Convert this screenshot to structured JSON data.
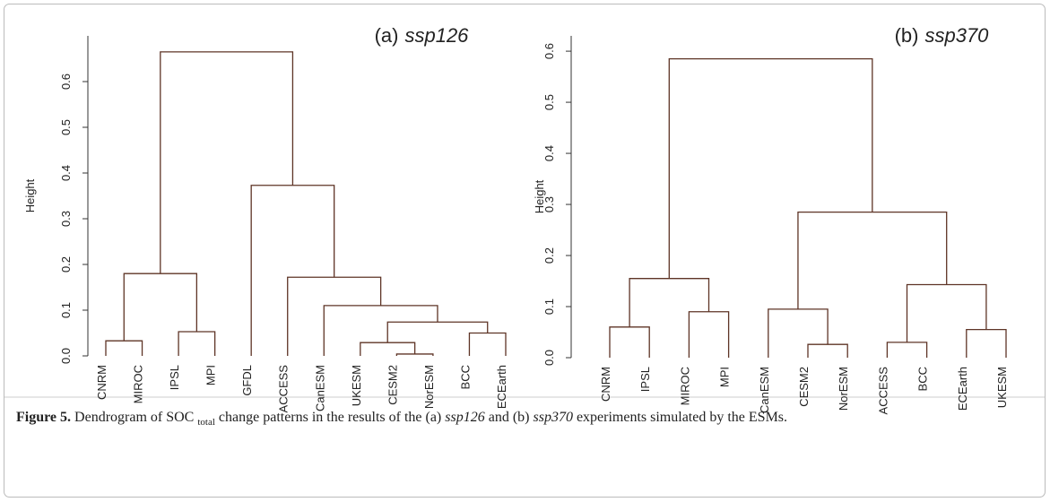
{
  "chart_data": [
    {
      "type": "dendrogram",
      "panel_label": "(a)",
      "scenario": "ssp126",
      "ylabel": "Height",
      "color": "#5e3426",
      "ylim": [
        0,
        0.7
      ],
      "yticks": [
        {
          "value": 0,
          "label": "0.0"
        },
        0.1,
        0.2,
        0.3,
        0.4,
        0.5,
        0.6
      ],
      "tree": {
        "height": 0.665,
        "children": [
          {
            "height": 0.18,
            "children": [
              {
                "height": 0.033,
                "children": [
                  {
                    "label": "CNRM"
                  },
                  {
                    "label": "MIROC"
                  }
                ]
              },
              {
                "height": 0.053,
                "children": [
                  {
                    "label": "IPSL"
                  },
                  {
                    "label": "MPI"
                  }
                ]
              }
            ]
          },
          {
            "height": 0.373,
            "children": [
              {
                "label": "GFDL"
              },
              {
                "height": 0.172,
                "children": [
                  {
                    "label": "ACCESS"
                  },
                  {
                    "height": 0.11,
                    "children": [
                      {
                        "label": "CanESM"
                      },
                      {
                        "height": 0.074,
                        "children": [
                          {
                            "height": 0.029,
                            "children": [
                              {
                                "label": "UKESM"
                              },
                              {
                                "height": 0.004,
                                "children": [
                                  {
                                    "label": "CESM2"
                                  },
                                  {
                                    "label": "NorESM"
                                  }
                                ]
                              }
                            ]
                          },
                          {
                            "height": 0.05,
                            "children": [
                              {
                                "label": "BCC"
                              },
                              {
                                "label": "ECEarth"
                              }
                            ]
                          }
                        ]
                      }
                    ]
                  }
                ]
              }
            ]
          }
        ]
      }
    },
    {
      "type": "dendrogram",
      "panel_label": "(b)",
      "scenario": "ssp370",
      "ylabel": "Height",
      "color": "#5e3426",
      "ylim": [
        0,
        0.63
      ],
      "yticks": [
        {
          "value": 0,
          "label": "0.0"
        },
        0.1,
        0.2,
        0.3,
        0.4,
        0.5,
        0.6
      ],
      "tree": {
        "height": 0.585,
        "children": [
          {
            "height": 0.155,
            "children": [
              {
                "height": 0.06,
                "children": [
                  {
                    "label": "CNRM"
                  },
                  {
                    "label": "IPSL"
                  }
                ]
              },
              {
                "height": 0.09,
                "children": [
                  {
                    "label": "MIROC"
                  },
                  {
                    "label": "MPI"
                  }
                ]
              }
            ]
          },
          {
            "height": 0.285,
            "children": [
              {
                "height": 0.095,
                "children": [
                  {
                    "label": "CanESM"
                  },
                  {
                    "height": 0.026,
                    "children": [
                      {
                        "label": "CESM2"
                      },
                      {
                        "label": "NorESM"
                      }
                    ]
                  }
                ]
              },
              {
                "height": 0.143,
                "children": [
                  {
                    "height": 0.03,
                    "children": [
                      {
                        "label": "ACCESS"
                      },
                      {
                        "label": "BCC"
                      }
                    ]
                  },
                  {
                    "height": 0.055,
                    "children": [
                      {
                        "label": "ECEarth"
                      },
                      {
                        "label": "UKESM"
                      }
                    ]
                  }
                ]
              }
            ]
          }
        ]
      }
    }
  ],
  "caption": [
    "Figure 5.",
    " Dendrogram of SOC ",
    "total",
    " change patterns in the results of the (a) ",
    "ssp126",
    " and (b) ",
    "ssp370",
    " experiments simulated by the ESMs."
  ]
}
